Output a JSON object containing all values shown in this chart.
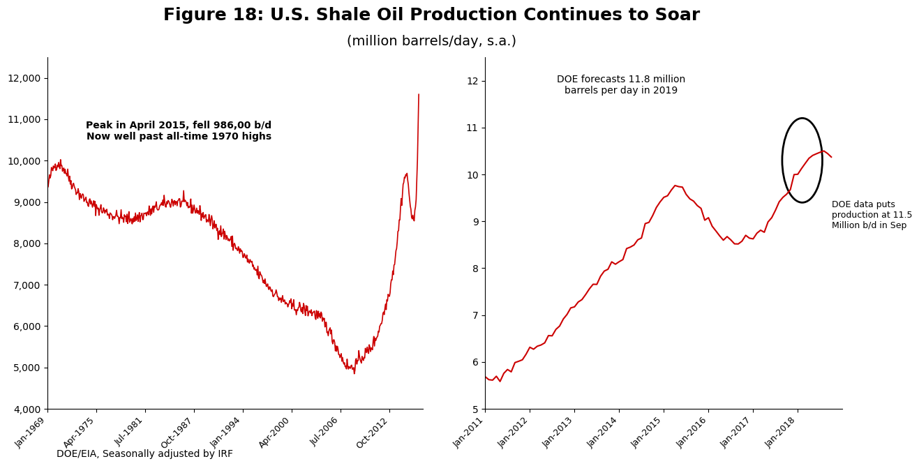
{
  "title": "Figure 18: U.S. Shale Oil Production Continues to Soar",
  "subtitle": "(million barrels/day, s.a.)",
  "source": "DOE/EIA, Seasonally adjusted by IRF",
  "line_color": "#cc0000",
  "background_color": "#ffffff",
  "left_chart": {
    "annotation1": "Peak in April 2015, fell 986,00 b/d",
    "annotation2": "Now well past all-time 1970 highs",
    "ylim": [
      4000,
      12500
    ],
    "yticks": [
      4000,
      5000,
      6000,
      7000,
      8000,
      9000,
      10000,
      11000,
      12000
    ],
    "ytick_labels": [
      "4,000",
      "5,000",
      "6,000",
      "7,000",
      "8,000",
      "9,000",
      "10,000",
      "11,000",
      "12,000"
    ],
    "xtick_labels": [
      "Jan-1969",
      "Apr-1975",
      "Jul-1981",
      "Oct-1987",
      "Jan-1994",
      "Apr-2000",
      "Jul-2006",
      "Oct-2012"
    ]
  },
  "right_chart": {
    "annotation1": "DOE forecasts 11.8 million",
    "annotation2": "barrels per day in 2019",
    "annotation3": "DOE data puts\nproduction at 11.5\nMillion b/d in Sep",
    "ylim": [
      5,
      12.5
    ],
    "yticks": [
      5,
      6,
      7,
      8,
      9,
      10,
      11,
      12
    ],
    "ytick_labels": [
      "5",
      "6",
      "7",
      "8",
      "9",
      "10",
      "11",
      "12"
    ],
    "xtick_labels": [
      "Jan-2011",
      "Jan-2012",
      "Jan-2013",
      "Jan-2014",
      "Jan-2015",
      "Jan-2016",
      "Jan-2017",
      "Jan-2018"
    ]
  }
}
